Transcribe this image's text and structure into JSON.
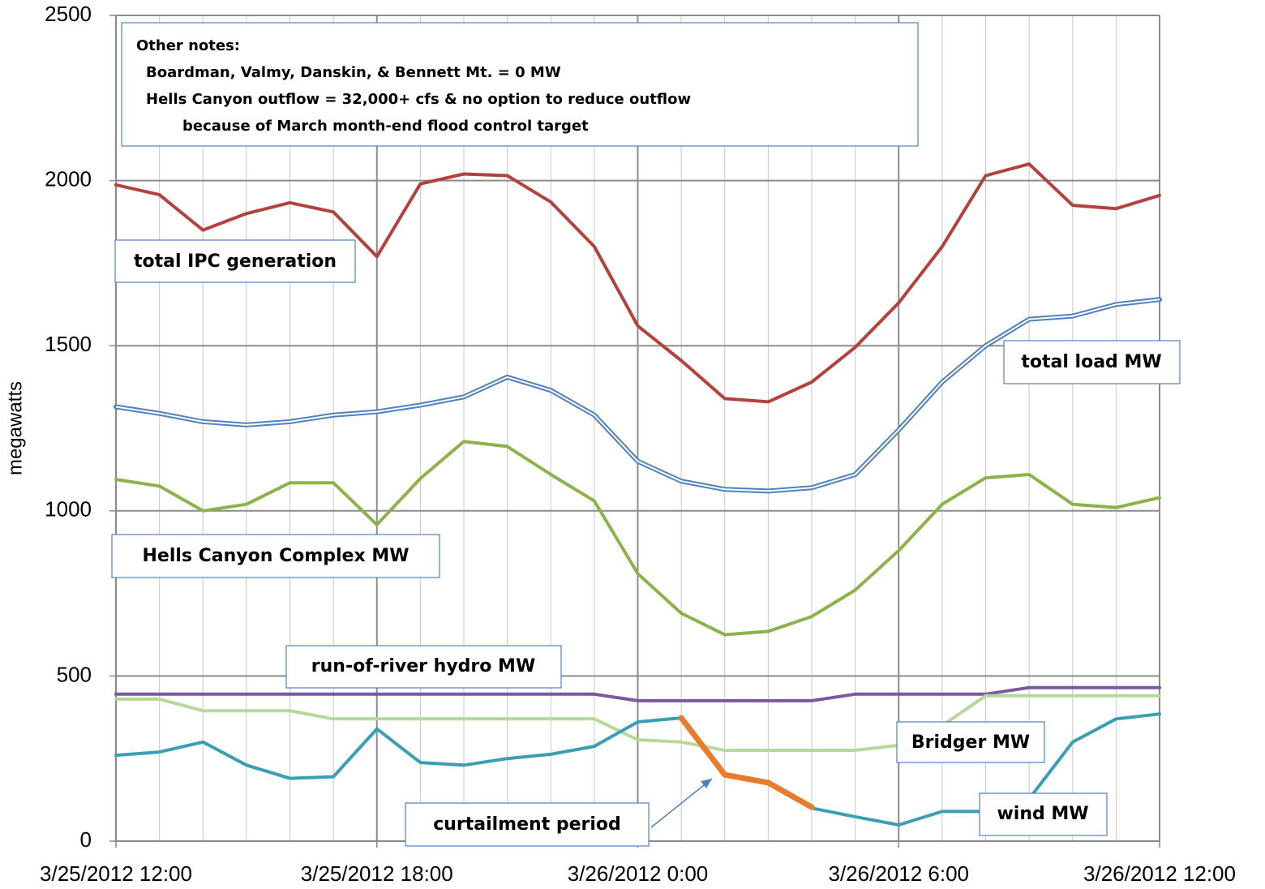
{
  "chart_data": {
    "type": "line",
    "y_label": "megawatts",
    "notes": [
      "Other notes:",
      "Boardman, Valmy, Danskin, & Bennett Mt. = 0 MW",
      "Hells Canyon outflow = 32,000+ cfs & no option to reduce outflow",
      "because of March month-end flood control target"
    ],
    "x": [
      "3/25/2012 12:00",
      "3/25/2012 13:00",
      "3/25/2012 14:00",
      "3/25/2012 15:00",
      "3/25/2012 16:00",
      "3/25/2012 17:00",
      "3/25/2012 18:00",
      "3/25/2012 19:00",
      "3/25/2012 20:00",
      "3/25/2012 21:00",
      "3/25/2012 22:00",
      "3/25/2012 23:00",
      "3/26/2012 0:00",
      "3/26/2012 1:00",
      "3/26/2012 2:00",
      "3/26/2012 3:00",
      "3/26/2012 4:00",
      "3/26/2012 5:00",
      "3/26/2012 6:00",
      "3/26/2012 7:00",
      "3/26/2012 8:00",
      "3/26/2012 9:00",
      "3/26/2012 10:00",
      "3/26/2012 11:00",
      "3/26/2012 12:00"
    ],
    "xlim": [
      "3/25/2012 12:00",
      "3/26/2012 12:00"
    ],
    "xticks": [
      "3/25/2012 12:00",
      "3/25/2012 18:00",
      "3/26/2012 0:00",
      "3/26/2012 6:00",
      "3/26/2012 12:00"
    ],
    "ylim": [
      0,
      2500
    ],
    "yticks": [
      0,
      500,
      1000,
      1500,
      2000,
      2500
    ],
    "grid": true,
    "series": [
      {
        "name": "total IPC generation",
        "color": "#b3413e",
        "values": [
          1987,
          1957,
          1850,
          1900,
          1933,
          1905,
          1770,
          1990,
          2020,
          2015,
          1935,
          1800,
          1560,
          1455,
          1340,
          1330,
          1390,
          1495,
          1630,
          1800,
          2015,
          2050,
          1925,
          1915,
          1955
        ]
      },
      {
        "name": "total load MW",
        "color": "#4f81bd",
        "double": true,
        "values": [
          1315,
          1295,
          1270,
          1260,
          1270,
          1290,
          1300,
          1320,
          1345,
          1405,
          1365,
          1290,
          1150,
          1090,
          1065,
          1060,
          1070,
          1110,
          1245,
          1390,
          1500,
          1580,
          1590,
          1625,
          1640
        ]
      },
      {
        "name": "Hells Canyon Complex MW",
        "color": "#8bb34a",
        "values": [
          1095,
          1075,
          1000,
          1020,
          1085,
          1085,
          958,
          1098,
          1210,
          1195,
          1110,
          1030,
          810,
          690,
          625,
          635,
          680,
          760,
          880,
          1020,
          1100,
          1110,
          1020,
          1010,
          1040
        ]
      },
      {
        "name": "run-of-river hydro MW",
        "color": "#7a59a0",
        "values": [
          445,
          445,
          445,
          445,
          445,
          445,
          445,
          445,
          445,
          445,
          445,
          445,
          425,
          425,
          425,
          425,
          425,
          445,
          445,
          445,
          445,
          465,
          465,
          465,
          465
        ]
      },
      {
        "name": "Bridger MW",
        "color": "#b8d89a",
        "values": [
          430,
          430,
          395,
          395,
          395,
          370,
          370,
          370,
          370,
          370,
          370,
          370,
          307,
          300,
          275,
          275,
          275,
          275,
          290,
          350,
          440,
          440,
          440,
          440,
          440
        ]
      },
      {
        "name": "wind MW",
        "color": "#3a9fb5",
        "values": [
          260,
          270,
          300,
          230,
          190,
          195,
          340,
          238,
          230,
          250,
          263,
          287,
          361,
          373,
          null,
          null,
          100,
          74,
          49,
          90,
          90,
          128,
          300,
          370,
          385
        ]
      },
      {
        "name": "curtailment period",
        "color": "#e87b2c",
        "width": 7,
        "values": [
          null,
          null,
          null,
          null,
          null,
          null,
          null,
          null,
          null,
          null,
          null,
          null,
          null,
          373,
          201,
          177,
          103,
          null,
          null,
          null,
          null,
          null,
          null,
          null,
          null
        ]
      }
    ]
  }
}
